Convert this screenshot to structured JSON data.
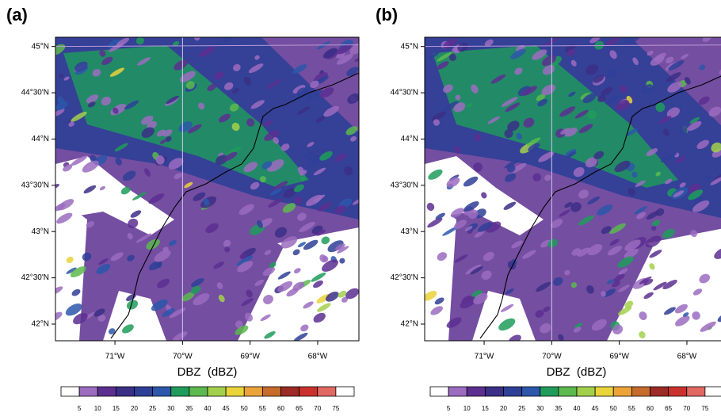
{
  "panels": [
    {
      "label": "(a)"
    },
    {
      "label": "(b)"
    }
  ],
  "lat_lim": [
    41.82,
    45.1
  ],
  "lon_lim": [
    -71.88,
    -67.39
  ],
  "lat_ticks": [
    {
      "value": 45,
      "label": "45°N"
    },
    {
      "value": 44.5,
      "label": "44°30'N"
    },
    {
      "value": 44,
      "label": "44°N"
    },
    {
      "value": 43.5,
      "label": "43°30'N"
    },
    {
      "value": 43,
      "label": "43°N"
    },
    {
      "value": 42.5,
      "label": "42°30'N"
    },
    {
      "value": 42,
      "label": "42°N"
    }
  ],
  "lon_ticks": [
    {
      "value": -71,
      "label": "71°W"
    },
    {
      "value": -70,
      "label": "70°W"
    },
    {
      "value": -69,
      "label": "69°W"
    },
    {
      "value": -68,
      "label": "68°W"
    }
  ],
  "colorbar": {
    "title": "DBZ  (dBZ)",
    "levels": [
      5,
      10,
      15,
      20,
      25,
      30,
      35,
      40,
      45,
      50,
      55,
      60,
      65,
      70,
      75
    ],
    "colors": [
      "#ffffff",
      "#9b6cc0",
      "#5c2f90",
      "#3b2f86",
      "#2f3f96",
      "#2c57aa",
      "#1f9c5b",
      "#5cb94f",
      "#a3d04c",
      "#e9d43a",
      "#eca43a",
      "#c66b2b",
      "#9b2b24",
      "#ca312c",
      "#e26862",
      "#ffffff"
    ]
  }
}
